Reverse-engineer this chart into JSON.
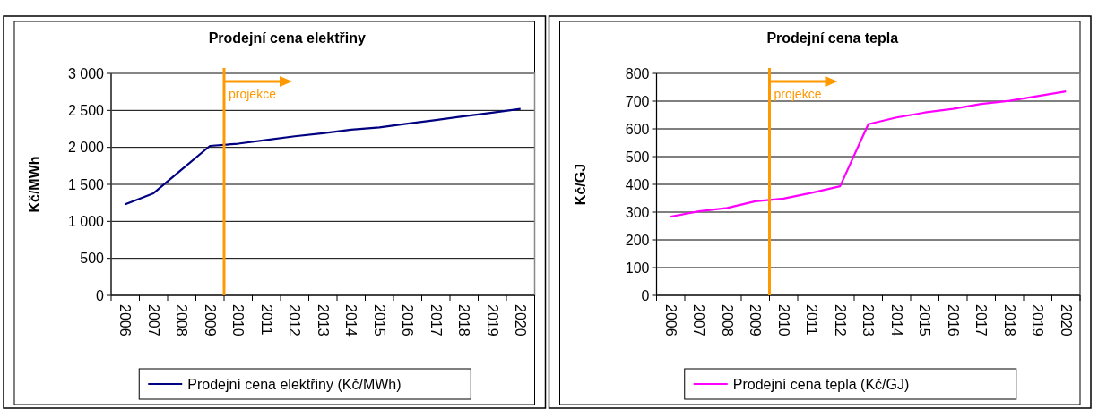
{
  "chart_data": [
    {
      "type": "line",
      "title": "Prodejní cena elektřiny",
      "ylabel": "Kč/MWh",
      "categories": [
        "2006",
        "2007",
        "2008",
        "2009",
        "2010",
        "2011",
        "2012",
        "2013",
        "2014",
        "2015",
        "2016",
        "2017",
        "2018",
        "2019",
        "2020"
      ],
      "series": [
        {
          "name": "Prodejní cena elektřiny (Kč/MWh)",
          "color": "#000080",
          "values": [
            1230,
            1380,
            1700,
            2020,
            2050,
            2100,
            2150,
            2190,
            2240,
            2270,
            2320,
            2370,
            2420,
            2470,
            2520
          ]
        }
      ],
      "ylim": [
        0,
        3000
      ],
      "yticks": [
        0,
        500,
        {
          "value": 1000,
          "label": "1 000"
        },
        {
          "value": 1500,
          "label": "1 500"
        },
        {
          "value": 2000,
          "label": "2 000"
        },
        {
          "value": 2500,
          "label": "2 500"
        },
        {
          "value": 3000,
          "label": "3 000"
        }
      ],
      "grid": "y",
      "legend": "bottom",
      "ref_lines": [
        {
          "axis": "x",
          "value": "2010",
          "label": "projekce",
          "color": "#ff9900"
        }
      ]
    },
    {
      "type": "line",
      "title": "Prodejní cena tepla",
      "ylabel": "Kč/GJ",
      "categories": [
        "2006",
        "2007",
        "2008",
        "2009",
        "2010",
        "2011",
        "2012",
        "2013",
        "2014",
        "2015",
        "2016",
        "2017",
        "2018",
        "2019",
        "2020"
      ],
      "series": [
        {
          "name": "Prodejní cena tepla (Kč/GJ)",
          "color": "#ff00ff",
          "values": [
            284,
            303,
            315,
            339,
            349,
            370,
            393,
            617,
            641,
            659,
            672,
            690,
            701,
            718,
            735
          ]
        }
      ],
      "ylim": [
        0,
        800
      ],
      "yticks": [
        0,
        100,
        200,
        300,
        400,
        500,
        600,
        700,
        800
      ],
      "grid": "y",
      "legend": "bottom",
      "ref_lines": [
        {
          "axis": "x",
          "value": "2010",
          "label": "projekce",
          "color": "#ff9900"
        }
      ]
    }
  ]
}
